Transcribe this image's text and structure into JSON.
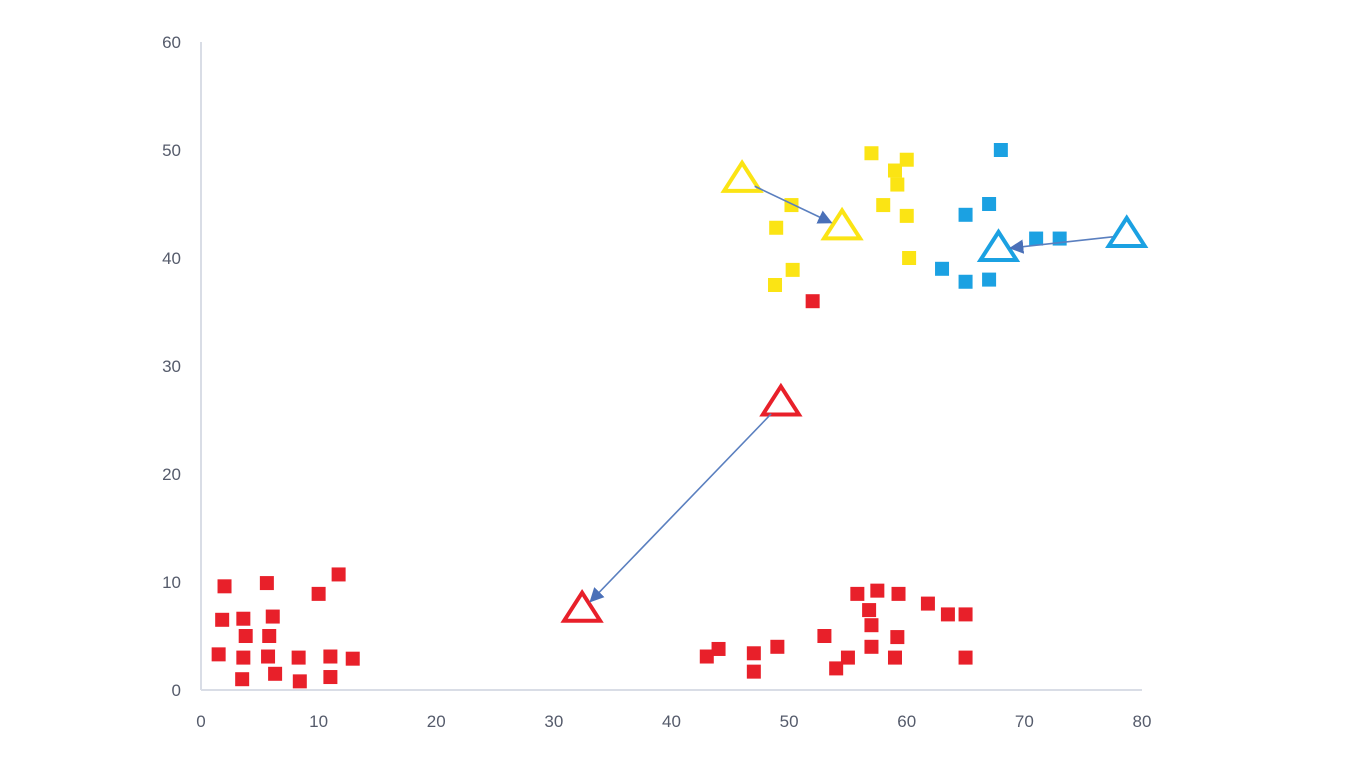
{
  "chart_data": {
    "type": "scatter",
    "title": "",
    "xlabel": "",
    "ylabel": "",
    "xlim": [
      0,
      80
    ],
    "ylim": [
      0,
      60
    ],
    "x_ticks": [
      "0",
      "10",
      "20",
      "30",
      "40",
      "50",
      "60",
      "70",
      "80"
    ],
    "y_ticks": [
      "0",
      "10",
      "20",
      "30",
      "40",
      "50",
      "60"
    ],
    "grid": false,
    "legend": "none",
    "series": [
      {
        "color": "#e8202a",
        "marker": "square",
        "points": [
          [
            1.5,
            3.3
          ],
          [
            1.8,
            6.5
          ],
          [
            2.0,
            9.6
          ],
          [
            3.5,
            1.0
          ],
          [
            3.6,
            3.0
          ],
          [
            3.6,
            6.6
          ],
          [
            3.8,
            5.0
          ],
          [
            5.6,
            9.9
          ],
          [
            5.7,
            3.1
          ],
          [
            5.8,
            5.0
          ],
          [
            6.1,
            6.8
          ],
          [
            6.3,
            1.5
          ],
          [
            8.3,
            3.0
          ],
          [
            8.4,
            0.8
          ],
          [
            10.0,
            8.9
          ],
          [
            11.0,
            1.2
          ],
          [
            11.0,
            3.1
          ],
          [
            11.7,
            10.7
          ],
          [
            12.9,
            2.9
          ],
          [
            43.0,
            3.1
          ],
          [
            44.0,
            3.8
          ],
          [
            47.0,
            1.7
          ],
          [
            47.0,
            3.4
          ],
          [
            49.0,
            4.0
          ],
          [
            52.0,
            36.0
          ],
          [
            53.0,
            5.0
          ],
          [
            54.0,
            2.0
          ],
          [
            55.0,
            3.0
          ],
          [
            55.8,
            8.9
          ],
          [
            56.8,
            7.4
          ],
          [
            57.0,
            4.0
          ],
          [
            57.0,
            6.0
          ],
          [
            57.5,
            9.2
          ],
          [
            59.0,
            3.0
          ],
          [
            59.2,
            4.9
          ],
          [
            59.3,
            8.9
          ],
          [
            61.8,
            8.0
          ],
          [
            63.5,
            7.0
          ],
          [
            65.0,
            7.0
          ],
          [
            65.0,
            3.0
          ]
        ]
      },
      {
        "color": "#fbe414",
        "marker": "square",
        "points": [
          [
            48.8,
            37.5
          ],
          [
            48.9,
            42.8
          ],
          [
            50.2,
            44.9
          ],
          [
            50.3,
            38.9
          ],
          [
            57.0,
            49.7
          ],
          [
            58.0,
            44.9
          ],
          [
            59.0,
            48.1
          ],
          [
            59.2,
            46.8
          ],
          [
            60.0,
            49.1
          ],
          [
            60.0,
            43.9
          ],
          [
            60.2,
            40.0
          ]
        ]
      },
      {
        "color": "#1ba1e2",
        "marker": "square",
        "points": [
          [
            63.0,
            39.0
          ],
          [
            65.0,
            37.8
          ],
          [
            65.0,
            44.0
          ],
          [
            67.0,
            38.0
          ],
          [
            67.0,
            45.0
          ],
          [
            68.0,
            50.0
          ],
          [
            71.0,
            41.8
          ],
          [
            73.0,
            41.8
          ]
        ]
      }
    ],
    "centroids": [
      {
        "color": "#e8202a",
        "from": [
          49.3,
          26.5
        ],
        "to": [
          32.4,
          7.4
        ]
      },
      {
        "color": "#fbe414",
        "from": [
          46.0,
          47.2
        ],
        "to": [
          54.5,
          42.8
        ]
      },
      {
        "color": "#1ba1e2",
        "from": [
          78.7,
          42.1
        ],
        "to": [
          67.8,
          40.8
        ]
      }
    ],
    "arrow_color": "#5a7fbf",
    "axis_color": "#d9dde6"
  }
}
